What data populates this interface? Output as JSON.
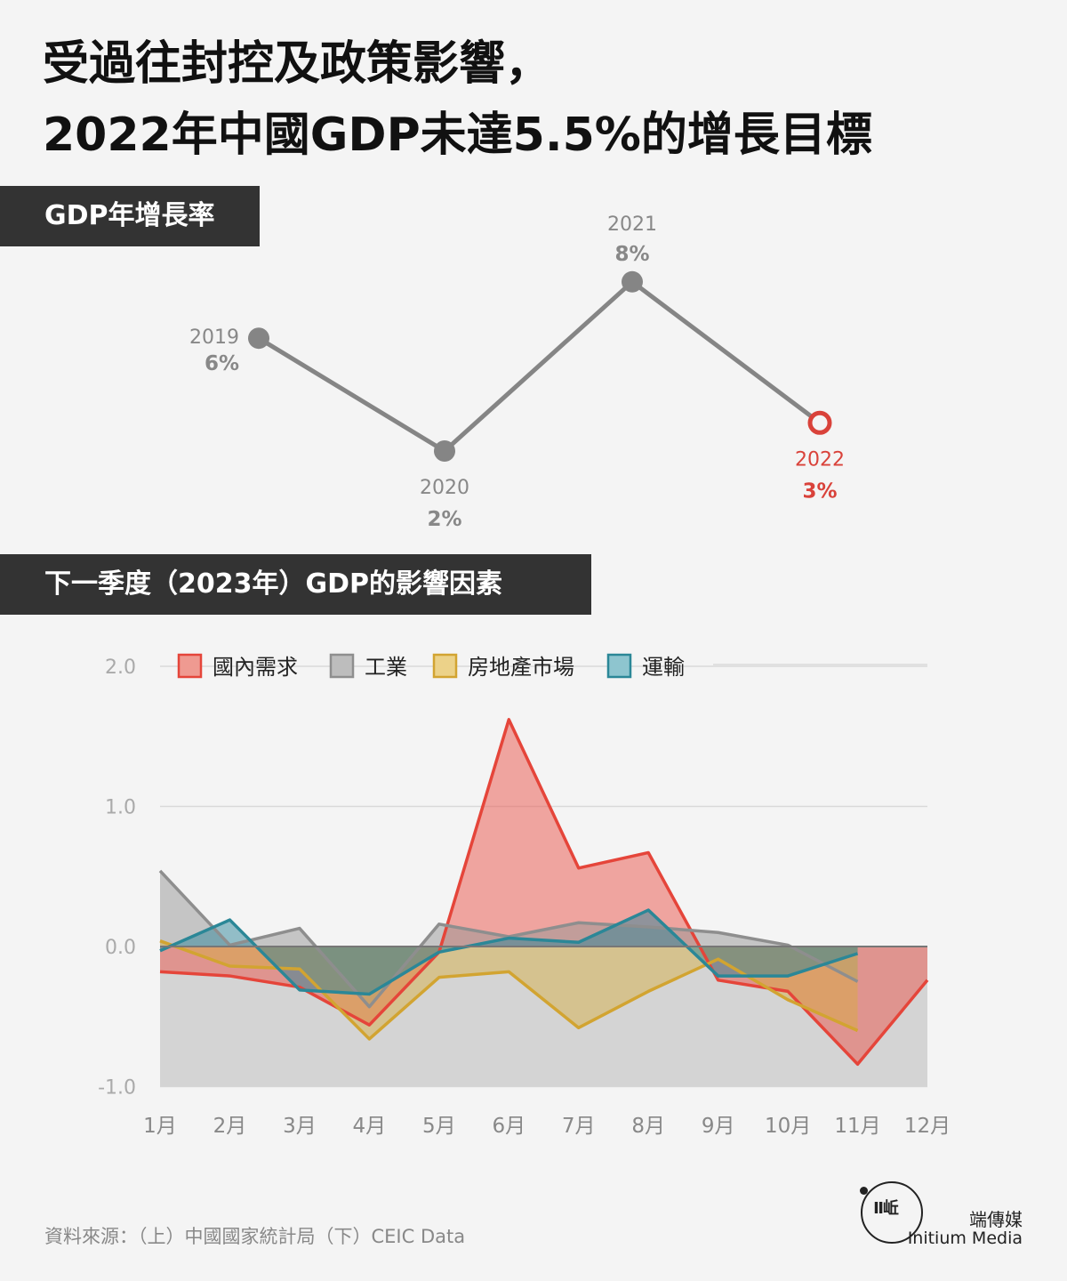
{
  "headline": {
    "line1": "受過往封控及政策影響，",
    "line2": "2022年中國GDP未達5.5%的增長目標"
  },
  "section1": {
    "label": "GDP年增長率"
  },
  "section2": {
    "label": "下一季度（2023年）GDP的影響因素"
  },
  "colors": {
    "gray_line": "#858585",
    "highlight": "#d9423a",
    "label_gray": "#888888",
    "domestic": "#e5453a",
    "industry": "#8e8e8e",
    "property": "#d2a431",
    "transport": "#2b8797"
  },
  "chart_data": [
    {
      "type": "line",
      "title": "GDP年增長率",
      "points": [
        {
          "year": "2019",
          "value": 6,
          "label": "6%"
        },
        {
          "year": "2020",
          "value": 2,
          "label": "2%"
        },
        {
          "year": "2021",
          "value": 8,
          "label": "8%"
        },
        {
          "year": "2022",
          "value": 3,
          "label": "3%",
          "highlight": true
        }
      ]
    },
    {
      "type": "area",
      "title": "下一季度（2023年）GDP的影響因素",
      "categories": [
        "1月",
        "2月",
        "3月",
        "4月",
        "5月",
        "6月",
        "7月",
        "8月",
        "9月",
        "10月",
        "11月",
        "12月"
      ],
      "ylim": [
        -1.0,
        2.0
      ],
      "yticks": [
        -1.0,
        0.0,
        1.0,
        2.0
      ],
      "ytick_labels": [
        "-1.0",
        "0.0",
        "1.0",
        "2.0"
      ],
      "grid": true,
      "legend_position": "top",
      "series": [
        {
          "name": "國內需求",
          "values": [
            -0.18,
            -0.21,
            -0.29,
            -0.56,
            -0.04,
            1.62,
            0.56,
            0.67,
            -0.24,
            -0.32,
            -0.84,
            -0.24
          ]
        },
        {
          "name": "工業",
          "values": [
            0.54,
            0.01,
            0.13,
            -0.43,
            0.16,
            0.07,
            0.17,
            0.14,
            0.1,
            0.01,
            -0.25,
            null
          ]
        },
        {
          "name": "房地產市場",
          "values": [
            0.04,
            -0.14,
            -0.16,
            -0.66,
            -0.22,
            -0.18,
            -0.58,
            -0.32,
            -0.09,
            -0.38,
            -0.6,
            null
          ]
        },
        {
          "name": "運輸",
          "values": [
            -0.03,
            0.19,
            -0.31,
            -0.34,
            -0.04,
            0.06,
            0.03,
            0.26,
            -0.21,
            -0.21,
            -0.05,
            null
          ]
        }
      ]
    }
  ],
  "source": "資料來源：（上）中國國家統計局（下）CEIC Data",
  "brand": {
    "cn": "端傳媒",
    "en": "Initium Media",
    "mark": "Ⅱ岴"
  }
}
